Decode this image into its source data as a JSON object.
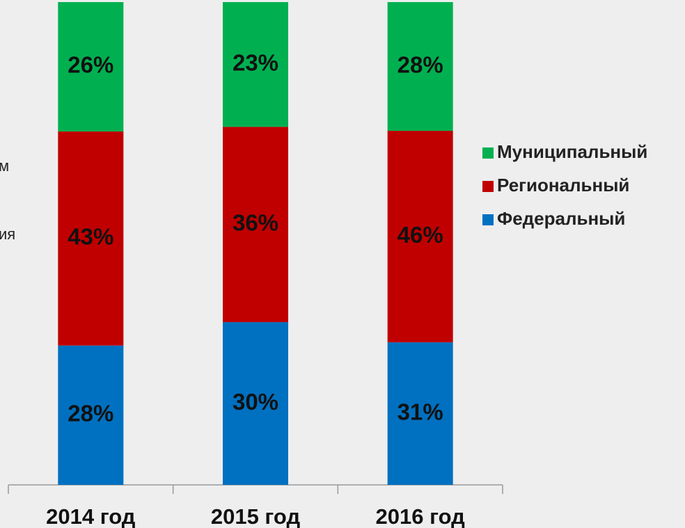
{
  "chart_data": {
    "type": "bar",
    "stacking": "percent",
    "categories": [
      "2014 год",
      "2015 год",
      "2016 год"
    ],
    "series": [
      {
        "name": "Федеральный",
        "color": "#0070c0",
        "values": [
          28,
          30,
          31
        ],
        "value_labels": [
          "28%",
          "30%",
          "31%"
        ]
      },
      {
        "name": "Региональный",
        "color": "#c00000",
        "values": [
          43,
          36,
          46
        ],
        "value_labels": [
          "43%",
          "36%",
          "46%"
        ]
      },
      {
        "name": "Муниципальный",
        "color": "#00b050",
        "values": [
          26,
          23,
          28
        ],
        "value_labels": [
          "26%",
          "23%",
          "28%"
        ]
      }
    ],
    "legend": "right",
    "annotations": [
      "м",
      "ия"
    ]
  }
}
